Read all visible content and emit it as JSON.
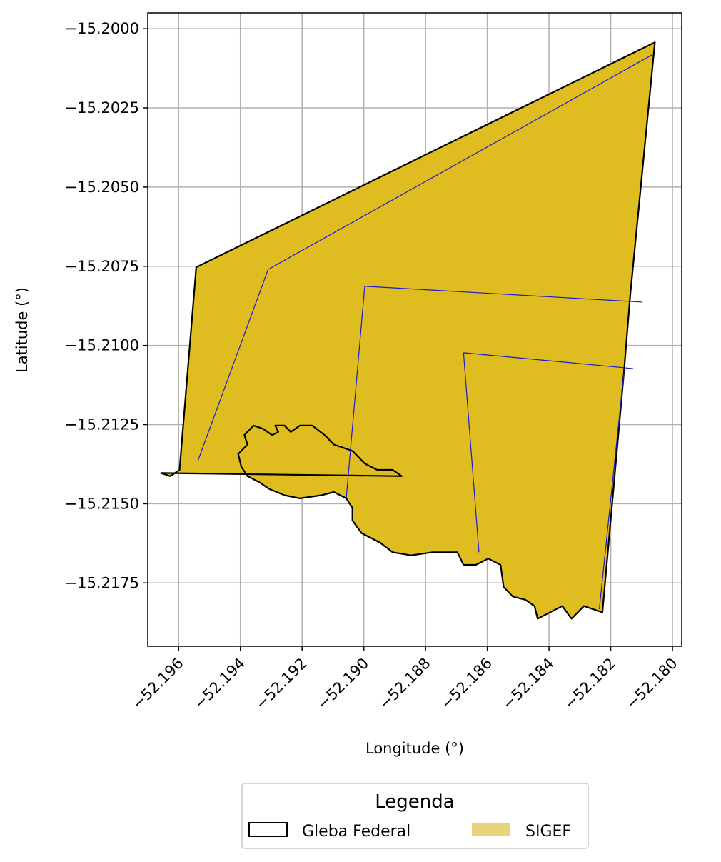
{
  "chart_data": {
    "type": "map",
    "xlabel": "Longitude (°)",
    "ylabel": "Latitude (°)",
    "xlim": [
      -52.197,
      -52.1797
    ],
    "ylim": [
      -15.2195,
      -15.1995
    ],
    "xticks": [
      -52.196,
      -52.194,
      -52.192,
      -52.19,
      -52.188,
      -52.186,
      -52.184,
      -52.182,
      -52.18
    ],
    "xtick_labels": [
      "−52.196",
      "−52.194",
      "−52.192",
      "−52.190",
      "−52.188",
      "−52.186",
      "−52.184",
      "−52.182",
      "−52.180"
    ],
    "yticks": [
      -15.2,
      -15.2025,
      -15.205,
      -15.2075,
      -15.21,
      -15.2125,
      -15.215,
      -15.2175
    ],
    "ytick_labels": [
      "−15.2000",
      "−15.2025",
      "−15.2050",
      "−15.2075",
      "−15.2100",
      "−15.2125",
      "−15.2150",
      "−15.2175"
    ],
    "grid": true,
    "colors": {
      "sigef_fill": "#DFBC20",
      "gleba_edge": "#000000",
      "parcel_edge": "#1a1acc",
      "grid": "#b0b0b0"
    },
    "gleba_federal": [
      [
        -52.19543,
        -15.20753
      ],
      [
        -52.18057,
        -15.20043
      ],
      [
        -52.18137,
        -15.20843
      ],
      [
        -52.18157,
        -15.21083
      ],
      [
        -52.18227,
        -15.21843
      ],
      [
        -52.18287,
        -15.21823
      ],
      [
        -52.18327,
        -15.21863
      ],
      [
        -52.18357,
        -15.21823
      ],
      [
        -52.18397,
        -15.21843
      ],
      [
        -52.18437,
        -15.21863
      ],
      [
        -52.18447,
        -15.21823
      ],
      [
        -52.18477,
        -15.21803
      ],
      [
        -52.18517,
        -15.21793
      ],
      [
        -52.18547,
        -15.21763
      ],
      [
        -52.18557,
        -15.21693
      ],
      [
        -52.18597,
        -15.21673
      ],
      [
        -52.18637,
        -15.21693
      ],
      [
        -52.18677,
        -15.21693
      ],
      [
        -52.18697,
        -15.21653
      ],
      [
        -52.18777,
        -15.21653
      ],
      [
        -52.18847,
        -15.21663
      ],
      [
        -52.18907,
        -15.21653
      ],
      [
        -52.18947,
        -15.21623
      ],
      [
        -52.19007,
        -15.21593
      ],
      [
        -52.19037,
        -15.21553
      ],
      [
        -52.19037,
        -15.21513
      ],
      [
        -52.19057,
        -15.21483
      ],
      [
        -52.19097,
        -15.21463
      ],
      [
        -52.19137,
        -15.21473
      ],
      [
        -52.19207,
        -15.21483
      ],
      [
        -52.19257,
        -15.21473
      ],
      [
        -52.19307,
        -15.21453
      ],
      [
        -52.19337,
        -15.21433
      ],
      [
        -52.19377,
        -15.21413
      ],
      [
        -52.19397,
        -15.21383
      ],
      [
        -52.19407,
        -15.21343
      ],
      [
        -52.19377,
        -15.21313
      ],
      [
        -52.19387,
        -15.21283
      ],
      [
        -52.19357,
        -15.21253
      ],
      [
        -52.19327,
        -15.21263
      ],
      [
        -52.19297,
        -15.21283
      ],
      [
        -52.19277,
        -15.21273
      ],
      [
        -52.19287,
        -15.21253
      ],
      [
        -52.19257,
        -15.21253
      ],
      [
        -52.19237,
        -15.21273
      ],
      [
        -52.19207,
        -15.21253
      ],
      [
        -52.19167,
        -15.21253
      ],
      [
        -52.19127,
        -15.21283
      ],
      [
        -52.19097,
        -15.21313
      ],
      [
        -52.19037,
        -15.21333
      ],
      [
        -52.18997,
        -15.21373
      ],
      [
        -52.18957,
        -15.21393
      ],
      [
        -52.18907,
        -15.21393
      ],
      [
        -52.18877,
        -15.21413
      ],
      [
        -52.19657,
        -15.21403
      ],
      [
        -52.19627,
        -15.21413
      ],
      [
        -52.19597,
        -15.21393
      ],
      [
        -52.19543,
        -15.20753
      ]
    ],
    "sigef_parcel_lines": [
      [
        [
          -52.1931,
          -15.2076
        ],
        [
          -52.18067,
          -15.20083
        ]
      ],
      [
        [
          -52.1931,
          -15.2076
        ],
        [
          -52.19537,
          -15.21363
        ]
      ],
      [
        [
          -52.18997,
          -15.20813
        ],
        [
          -52.18097,
          -15.20863
        ]
      ],
      [
        [
          -52.18997,
          -15.20813
        ],
        [
          -52.19057,
          -15.21483
        ]
      ],
      [
        [
          -52.18677,
          -15.21023
        ],
        [
          -52.18127,
          -15.21073
        ]
      ],
      [
        [
          -52.18677,
          -15.21023
        ],
        [
          -52.18627,
          -15.21653
        ]
      ],
      [
        [
          -52.18157,
          -15.21083
        ],
        [
          -52.18237,
          -15.21833
        ]
      ]
    ],
    "legend": {
      "title": "Legenda",
      "position": "bottom-center",
      "entries": [
        "Gleba Federal",
        "SIGEF"
      ]
    }
  }
}
